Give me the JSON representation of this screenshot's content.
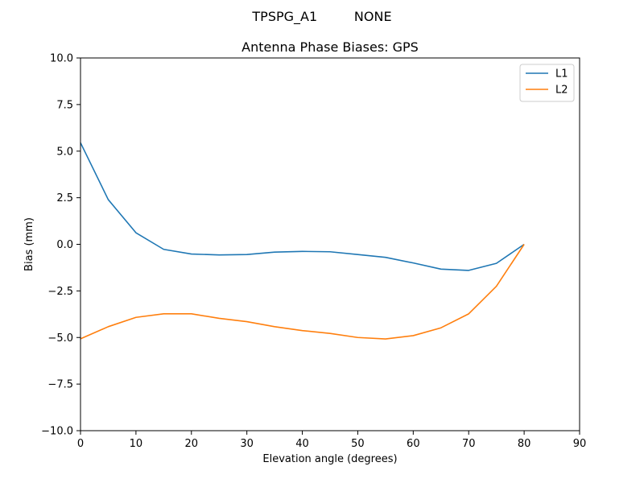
{
  "figure": {
    "suptitle": "TPSPG_A1         NONE"
  },
  "chart_data": {
    "type": "line",
    "title": "Antenna Phase Biases: GPS",
    "xlabel": "Elevation angle (degrees)",
    "ylabel": "Bias (mm)",
    "xlim": [
      0,
      90
    ],
    "ylim": [
      -10,
      10
    ],
    "xticks": [
      0,
      10,
      20,
      30,
      40,
      50,
      60,
      70,
      80,
      90
    ],
    "xtick_labels": [
      "0",
      "10",
      "20",
      "30",
      "40",
      "50",
      "60",
      "70",
      "80",
      "90"
    ],
    "yticks": [
      -10,
      -7.5,
      -5,
      -2.5,
      0,
      2.5,
      5,
      7.5,
      10
    ],
    "ytick_labels": [
      "−10.0",
      "−7.5",
      "−5.0",
      "−2.5",
      "0.0",
      "2.5",
      "5.0",
      "7.5",
      "10.0"
    ],
    "grid": false,
    "legend_position": "top-right",
    "x": [
      0,
      5,
      10,
      15,
      20,
      25,
      30,
      35,
      40,
      45,
      50,
      55,
      60,
      65,
      70,
      75,
      80
    ],
    "series": [
      {
        "name": "L1",
        "color": "#1f77b4",
        "values": [
          5.45,
          2.4,
          0.62,
          -0.27,
          -0.52,
          -0.57,
          -0.55,
          -0.42,
          -0.38,
          -0.4,
          -0.55,
          -0.7,
          -1.0,
          -1.33,
          -1.4,
          -1.02,
          0.0
        ]
      },
      {
        "name": "L2",
        "color": "#ff7f0e",
        "values": [
          -5.07,
          -4.42,
          -3.92,
          -3.73,
          -3.73,
          -3.97,
          -4.15,
          -4.42,
          -4.63,
          -4.78,
          -5.0,
          -5.08,
          -4.9,
          -4.48,
          -3.73,
          -2.25,
          0.0
        ]
      }
    ]
  }
}
